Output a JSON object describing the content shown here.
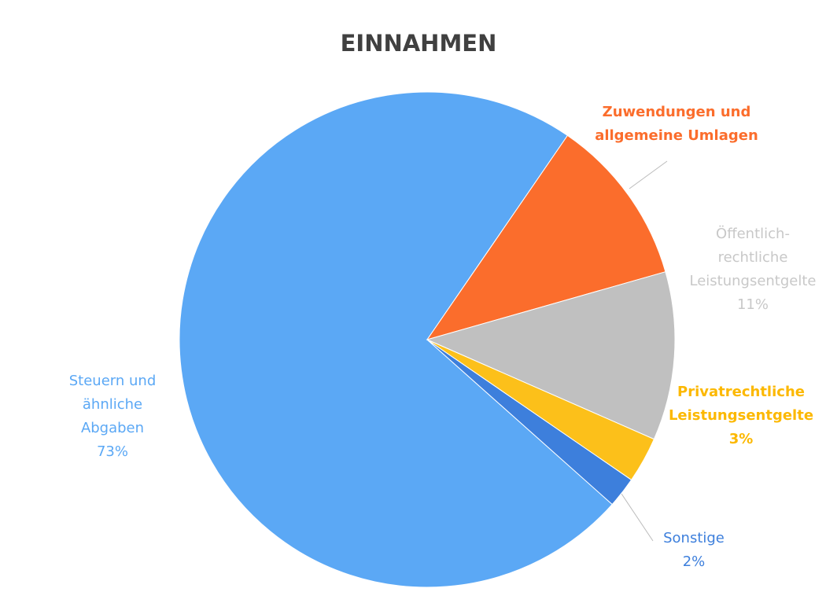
{
  "chart_data": {
    "type": "pie",
    "title": "EINNAHMEN",
    "categories": [
      "Steuern und ähnliche Abgaben",
      "Zuwendungen und allgemeine Umlagen",
      "Öffentlich-rechtliche Leistungsentgelte",
      "Privatrechtliche Leistungsentgelte",
      "Sonstige"
    ],
    "values": [
      73,
      11,
      11,
      3,
      2
    ],
    "value_labels": [
      "73%",
      null,
      "11%",
      "3%",
      "2%"
    ],
    "colors": [
      "#5ba8f5",
      "#fb6d2c",
      "#c0c0c0",
      "#fcc01a",
      "#3d7fdc"
    ]
  }
}
